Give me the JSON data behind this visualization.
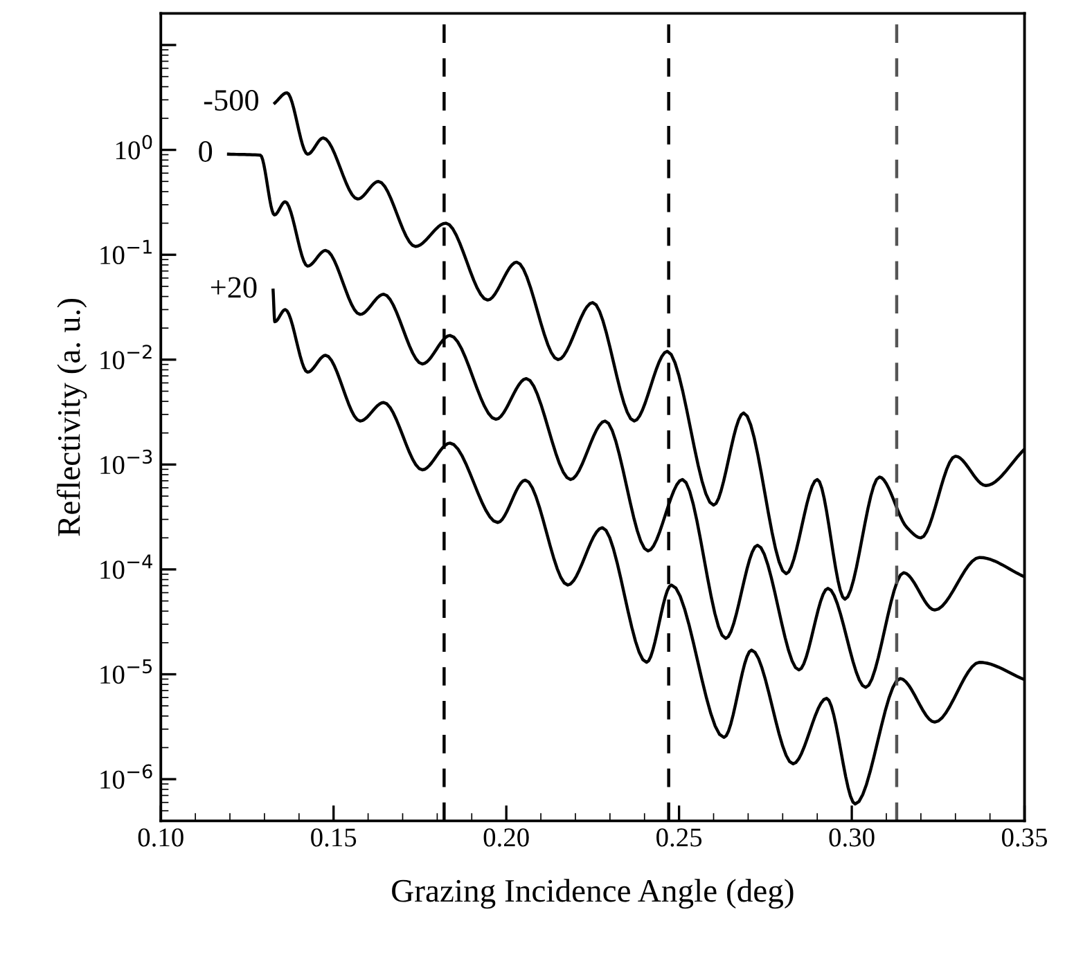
{
  "chart_data": {
    "type": "line",
    "xlabel": "Grazing Incidence Angle (deg)",
    "ylabel": "Reflectivity (a. u.)",
    "log": "y",
    "grid": false,
    "legend": false,
    "marker": "none",
    "line_style": "solid",
    "xlim": [
      0.1,
      0.35
    ],
    "xticks": [
      {
        "value": 0.1,
        "label": "0.10"
      },
      0.15,
      {
        "value": 0.2,
        "label": "0.20"
      },
      0.25,
      {
        "value": 0.3,
        "label": "0.30"
      },
      0.35
    ],
    "ylim": [
      4e-07,
      20
    ],
    "yticks": [
      {
        "value": 1e-06,
        "label": "10$^{−6}$"
      },
      {
        "value": 1e-05,
        "label": "10$^{−5}$"
      },
      {
        "value": 0.0001,
        "label": "10$^{−4}$"
      },
      {
        "value": 0.001,
        "label": "10$^{−3}$"
      },
      {
        "value": 0.01,
        "label": "10$^{−2}$"
      },
      {
        "value": 0.1,
        "label": "10$^{−1}$"
      },
      {
        "value": 1,
        "label": "10$^{0}$"
      },
      {
        "value": 10,
        "label": null
      }
    ],
    "series": [
      {
        "name": "-500",
        "color": "#000000",
        "x": [
          0.133,
          0.1365,
          0.1425,
          0.147,
          0.157,
          0.163,
          0.1737,
          0.1825,
          0.1946,
          0.203,
          0.215,
          0.225,
          0.237,
          0.2466,
          0.26,
          0.2687,
          0.281,
          0.29,
          0.298,
          0.308,
          0.316,
          0.32,
          0.33,
          0.3388,
          0.35
        ],
        "values": [
          2.8,
          3.5,
          0.91,
          1.3,
          0.34,
          0.5,
          0.12,
          0.2,
          0.037,
          0.085,
          0.01,
          0.035,
          0.0026,
          0.012,
          0.00041,
          0.0031,
          9.1e-05,
          0.00072,
          5.2e-05,
          0.00076,
          0.00025,
          0.0002,
          0.0012,
          0.00063,
          0.0014
        ]
      },
      {
        "name": "0",
        "color": "#000000",
        "x": [
          0.1196,
          0.1288,
          0.1329,
          0.136,
          0.1425,
          0.1477,
          0.1577,
          0.1645,
          0.1757,
          0.1837,
          0.197,
          0.2058,
          0.2186,
          0.2286,
          0.241,
          0.251,
          0.2635,
          0.2727,
          0.2847,
          0.2931,
          0.304,
          0.315,
          0.324,
          0.337,
          0.35
        ],
        "values": [
          0.91,
          0.89,
          0.24,
          0.32,
          0.078,
          0.11,
          0.027,
          0.042,
          0.0091,
          0.017,
          0.0027,
          0.0066,
          0.00072,
          0.0026,
          0.00015,
          0.00072,
          2.2e-05,
          0.00017,
          1.1e-05,
          6.6e-05,
          7.5e-06,
          9.3e-05,
          4.1e-05,
          0.00013,
          8.5e-05
        ]
      },
      {
        "name": "+20",
        "color": "#000000",
        "x": [
          0.1325,
          0.133,
          0.136,
          0.1425,
          0.1477,
          0.1577,
          0.1645,
          0.1757,
          0.1837,
          0.1975,
          0.2055,
          0.2178,
          0.2278,
          0.2406,
          0.2478,
          0.263,
          0.271,
          0.283,
          0.2927,
          0.301,
          0.314,
          0.324,
          0.337,
          0.35
        ],
        "values": [
          0.046,
          0.023,
          0.03,
          0.0076,
          0.011,
          0.0026,
          0.0039,
          0.00089,
          0.0016,
          0.00028,
          0.00071,
          7.1e-05,
          0.00025,
          1.3e-05,
          7.1e-05,
          2.5e-06,
          1.7e-05,
          1.4e-06,
          5.9e-06,
          5.8e-07,
          9.1e-06,
          3.5e-06,
          1.3e-05,
          8.9e-06
        ]
      }
    ],
    "ref_lines": [
      {
        "axis": "x",
        "value": 0.182,
        "color": "#000000",
        "line_style": "dashed"
      },
      {
        "axis": "x",
        "value": 0.247,
        "color": "#000000",
        "line_style": "dashed"
      },
      {
        "axis": "x",
        "value": 0.313,
        "color": "#555555",
        "line_style": "dashed"
      }
    ]
  }
}
